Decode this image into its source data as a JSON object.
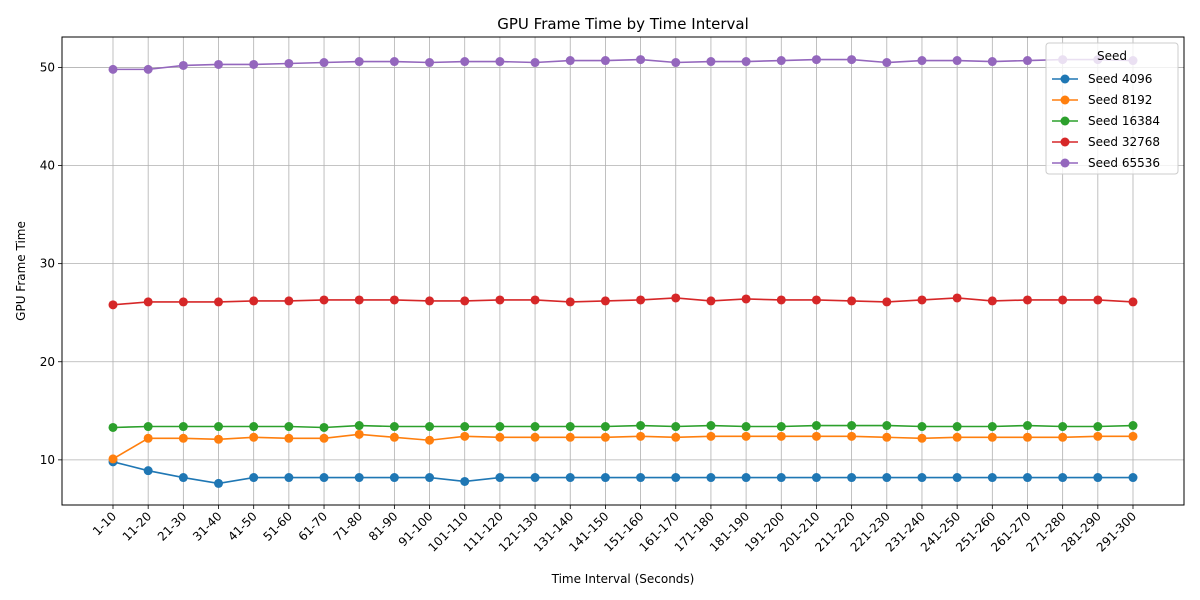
{
  "chart_data": {
    "type": "line",
    "title": "GPU Frame Time by Time Interval",
    "xlabel": "Time Interval (Seconds)",
    "ylabel": "GPU Frame Time",
    "ylim": [
      5.4,
      53.1
    ],
    "yticks": [
      10,
      20,
      30,
      40,
      50
    ],
    "grid": true,
    "legend_title": "Seed",
    "legend_position": "top-right",
    "categories": [
      "1-10",
      "11-20",
      "21-30",
      "31-40",
      "41-50",
      "51-60",
      "61-70",
      "71-80",
      "81-90",
      "91-100",
      "101-110",
      "111-120",
      "121-130",
      "131-140",
      "141-150",
      "151-160",
      "161-170",
      "171-180",
      "181-190",
      "191-200",
      "201-210",
      "211-220",
      "221-230",
      "231-240",
      "241-250",
      "251-260",
      "261-270",
      "271-280",
      "281-290",
      "291-300"
    ],
    "series": [
      {
        "name": "Seed 4096",
        "color": "#1f77b4",
        "values": [
          9.8,
          8.9,
          8.2,
          7.6,
          8.2,
          8.2,
          8.2,
          8.2,
          8.2,
          8.2,
          7.8,
          8.2,
          8.2,
          8.2,
          8.2,
          8.2,
          8.2,
          8.2,
          8.2,
          8.2,
          8.2,
          8.2,
          8.2,
          8.2,
          8.2,
          8.2,
          8.2,
          8.2,
          8.2,
          8.2
        ]
      },
      {
        "name": "Seed 8192",
        "color": "#ff7f0e",
        "values": [
          10.1,
          12.2,
          12.2,
          12.1,
          12.3,
          12.2,
          12.2,
          12.6,
          12.3,
          12.0,
          12.4,
          12.3,
          12.3,
          12.3,
          12.3,
          12.4,
          12.3,
          12.4,
          12.4,
          12.4,
          12.4,
          12.4,
          12.3,
          12.2,
          12.3,
          12.3,
          12.3,
          12.3,
          12.4,
          12.4
        ]
      },
      {
        "name": "Seed 16384",
        "color": "#2ca02c",
        "values": [
          13.3,
          13.4,
          13.4,
          13.4,
          13.4,
          13.4,
          13.3,
          13.5,
          13.4,
          13.4,
          13.4,
          13.4,
          13.4,
          13.4,
          13.4,
          13.5,
          13.4,
          13.5,
          13.4,
          13.4,
          13.5,
          13.5,
          13.5,
          13.4,
          13.4,
          13.4,
          13.5,
          13.4,
          13.4,
          13.5
        ]
      },
      {
        "name": "Seed 32768",
        "color": "#d62728",
        "values": [
          25.8,
          26.1,
          26.1,
          26.1,
          26.2,
          26.2,
          26.3,
          26.3,
          26.3,
          26.2,
          26.2,
          26.3,
          26.3,
          26.1,
          26.2,
          26.3,
          26.5,
          26.2,
          26.4,
          26.3,
          26.3,
          26.2,
          26.1,
          26.3,
          26.5,
          26.2,
          26.3,
          26.3,
          26.3,
          26.1
        ]
      },
      {
        "name": "Seed 65536",
        "color": "#9467bd",
        "values": [
          49.8,
          49.8,
          50.2,
          50.3,
          50.3,
          50.4,
          50.5,
          50.6,
          50.6,
          50.5,
          50.6,
          50.6,
          50.5,
          50.7,
          50.7,
          50.8,
          50.5,
          50.6,
          50.6,
          50.7,
          50.8,
          50.8,
          50.5,
          50.7,
          50.7,
          50.6,
          50.7,
          50.8,
          50.8,
          50.7
        ]
      }
    ]
  }
}
